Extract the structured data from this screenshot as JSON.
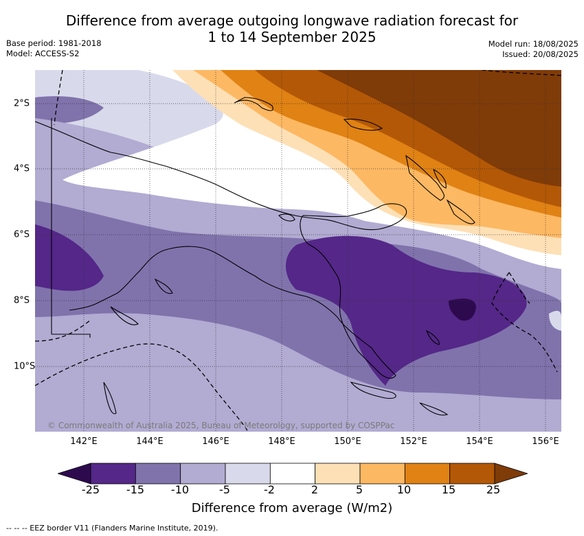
{
  "title_line1": "Difference from average outgoing longwave radiation forecast for",
  "title_line2": "1 to 14 September 2025",
  "base_period": "Base period: 1981-2018",
  "model": "Model: ACCESS-S2",
  "model_run": "Model run: 18/08/2025",
  "issued": "Issued: 20/08/2025",
  "copyright": "© Commonwealth of Australia 2025, Bureau of Meteorology, supported by COSPPac",
  "x_ticks": [
    "142°E",
    "144°E",
    "146°E",
    "148°E",
    "150°E",
    "152°E",
    "154°E",
    "156°E"
  ],
  "y_ticks": [
    "2°S",
    "4°S",
    "6°S",
    "8°S",
    "10°S"
  ],
  "colorbar": {
    "title": "Difference from average (W/m2)",
    "labels": [
      "-25",
      "-15",
      "-10",
      "-5",
      "-2",
      "2",
      "5",
      "10",
      "15",
      "25"
    ],
    "colors": [
      "#2d0a4e",
      "#542788",
      "#8073ac",
      "#b2abd2",
      "#d8daeb",
      "#ffffff",
      "#fee0b6",
      "#fdb863",
      "#e08214",
      "#b35806",
      "#7f3b08"
    ]
  },
  "footnote": "-- -- -- EEZ border V11 (Flanders Marine Institute, 2019)."
}
